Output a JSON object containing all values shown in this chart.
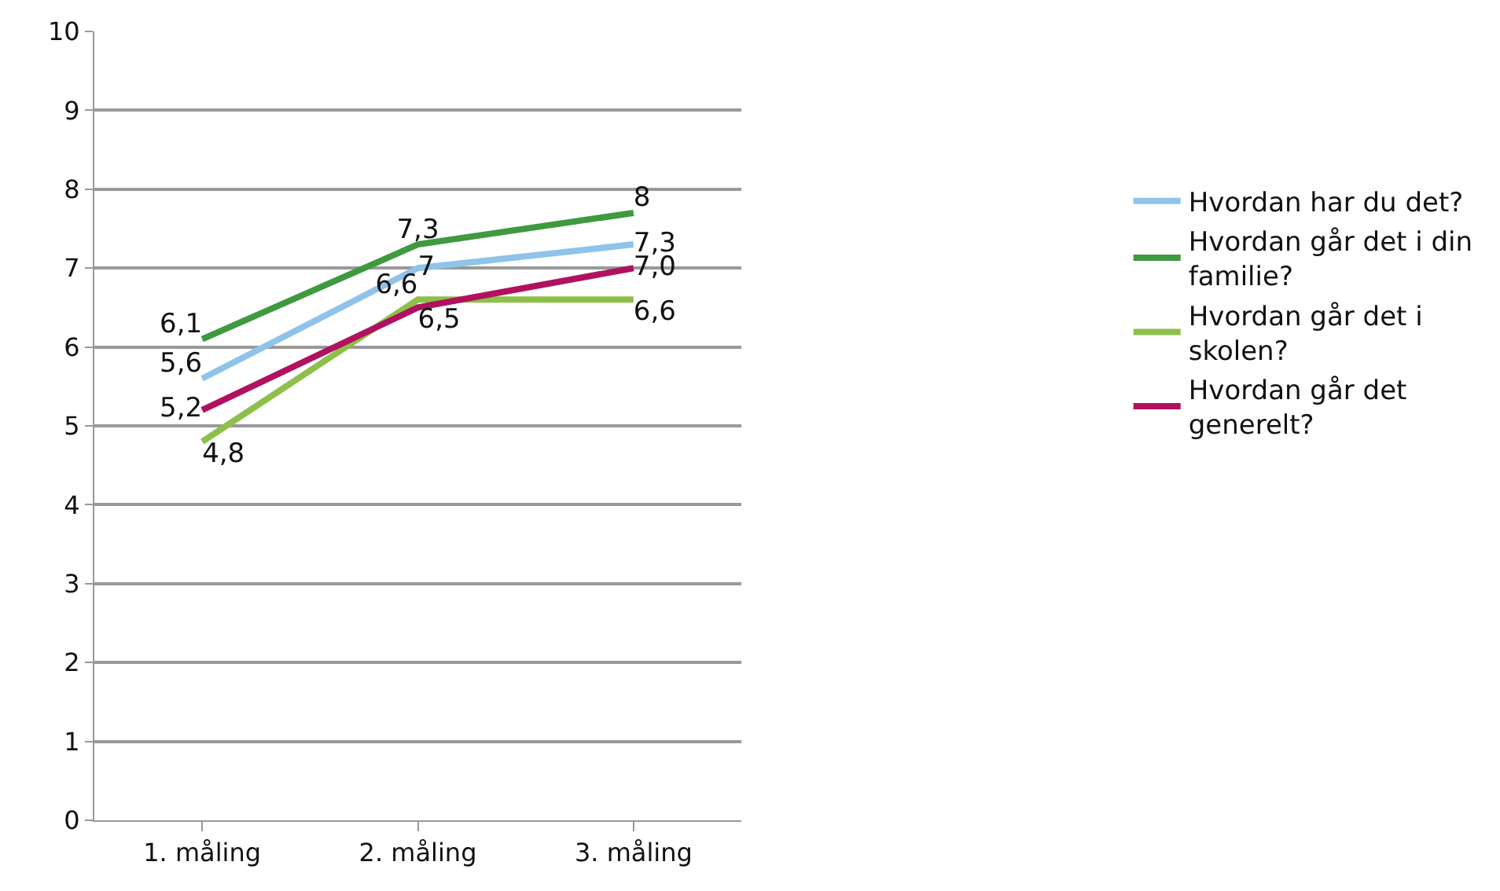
{
  "chart_data": {
    "type": "line",
    "categories": [
      "1. måling",
      "2. måling",
      "3. måling"
    ],
    "series": [
      {
        "name": "Hvordan har du det?",
        "color": "#8fc3ea",
        "values": [
          5.6,
          7,
          7.3
        ],
        "value_labels": [
          "5,6",
          "7",
          "7,3"
        ]
      },
      {
        "name": "Hvordan går det i din familie?",
        "color": "#3f9a3f",
        "values": [
          6.1,
          7.3,
          7.7
        ],
        "value_labels": [
          "6,1",
          "7,3",
          "8"
        ]
      },
      {
        "name": "Hvordan går det i skolen?",
        "color": "#8dc04a",
        "values": [
          4.8,
          6.6,
          6.6
        ],
        "value_labels": [
          "4,8",
          "6,6",
          "6,6"
        ]
      },
      {
        "name": "Hvordan går det generelt?",
        "color": "#b0125f",
        "values": [
          5.2,
          6.5,
          7.0
        ],
        "value_labels": [
          "5,2",
          "6,5",
          "7,0"
        ]
      }
    ],
    "ylim": [
      0,
      10
    ],
    "yticks": [
      0,
      1,
      2,
      3,
      4,
      5,
      6,
      7,
      8,
      9,
      10
    ],
    "grid": "y",
    "legend": "right",
    "marker": "none",
    "line_style": "solid"
  }
}
